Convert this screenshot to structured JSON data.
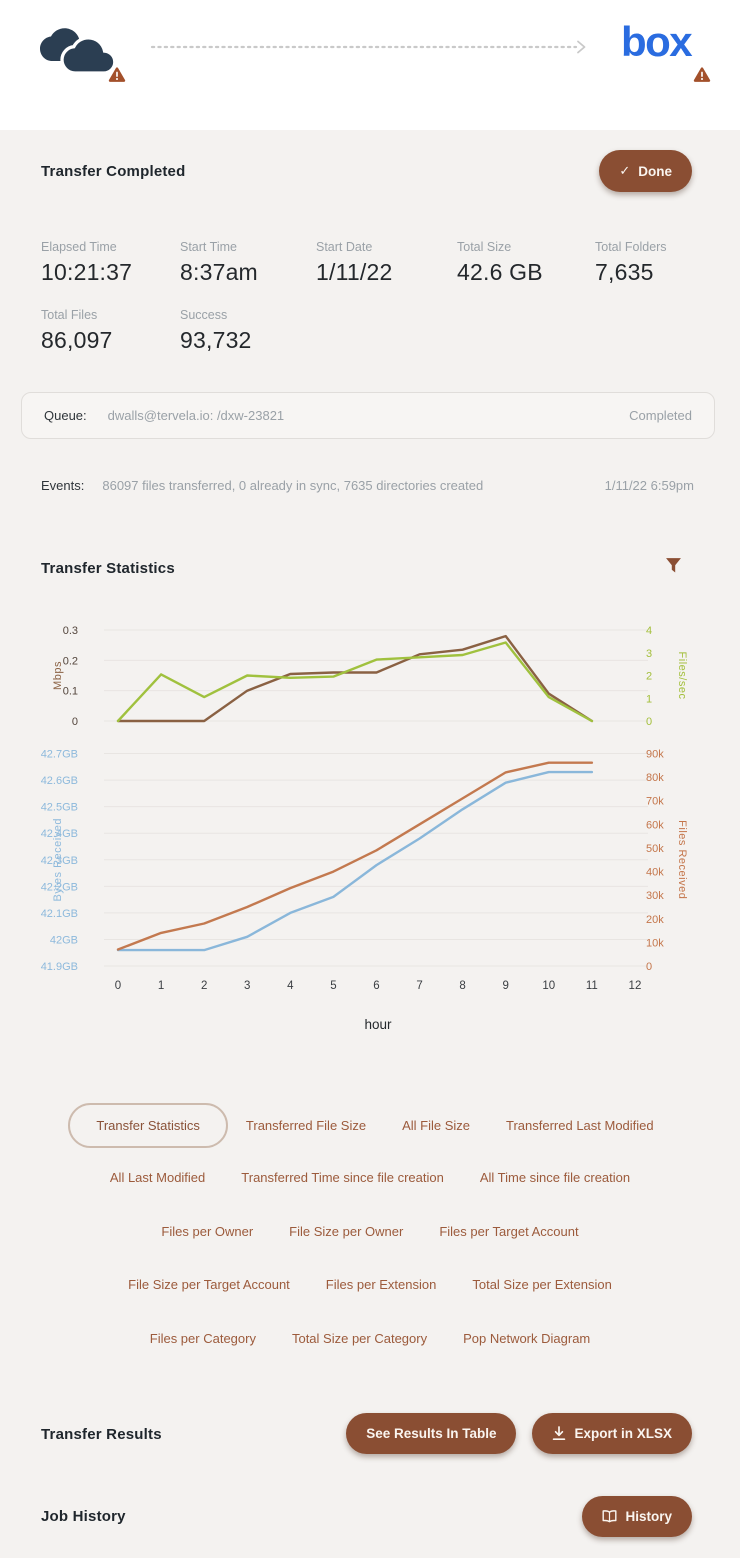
{
  "header": {
    "source_icon": "onedrive-cloud",
    "target_logo": "box",
    "warning_color": "#a3502b"
  },
  "transfer": {
    "title": "Transfer Completed",
    "done_label": "Done",
    "stats": [
      {
        "label": "Elapsed Time",
        "value": "10:21:37"
      },
      {
        "label": "Start Time",
        "value": "8:37am"
      },
      {
        "label": "Start Date",
        "value": "1/11/22"
      },
      {
        "label": "Total Size",
        "value": "42.6 GB"
      },
      {
        "label": "Total Folders",
        "value": "7,635"
      },
      {
        "label": "Total Files",
        "value": "86,097"
      },
      {
        "label": "Success",
        "value": "93,732"
      }
    ]
  },
  "queue": {
    "label": "Queue:",
    "value": "dwalls@tervela.io: /dxw-23821",
    "status": "Completed"
  },
  "events": {
    "label": "Events:",
    "value": "86097 files transferred, 0 already in sync, 7635 directories created",
    "timestamp": "1/11/22 6:59pm"
  },
  "statistics": {
    "title": "Transfer Statistics",
    "filter_icon": "funnel"
  },
  "chart_data": [
    {
      "type": "line",
      "x": [
        0,
        1,
        2,
        3,
        4,
        5,
        6,
        7,
        8,
        9,
        10,
        11
      ],
      "xlabel": "hour",
      "x_ticks": [
        0,
        1,
        2,
        3,
        4,
        5,
        6,
        7,
        8,
        9,
        10,
        11,
        12
      ],
      "xlim": [
        0,
        12
      ],
      "grid": true,
      "left_axis": {
        "label": "Mbps",
        "color": "#53453c",
        "title_color": "#8a6143",
        "ticks": [
          "0",
          "0.1",
          "0.2",
          "0.3"
        ],
        "tick_values": [
          0,
          0.1,
          0.2,
          0.3
        ],
        "range": [
          0,
          0.3
        ]
      },
      "right_axis": {
        "label": "Files/sec",
        "color": "#a3bf3b",
        "title_color": "#a3bf3b",
        "ticks": [
          "0",
          "1",
          "2",
          "3",
          "4"
        ],
        "tick_values": [
          0,
          1,
          2,
          3,
          4
        ],
        "range": [
          0,
          4
        ]
      },
      "series": [
        {
          "name": "Mbps",
          "axis": "left",
          "color": "#8a6143",
          "values": [
            0,
            0,
            0,
            0.1,
            0.155,
            0.16,
            0.16,
            0.22,
            0.235,
            0.28,
            0.09,
            0
          ]
        },
        {
          "name": "Files/sec",
          "axis": "right",
          "color": "#a0c13e",
          "values": [
            0,
            2.05,
            1.05,
            2.0,
            1.9,
            1.95,
            2.7,
            2.8,
            2.9,
            3.45,
            1.05,
            0
          ]
        }
      ]
    },
    {
      "type": "line",
      "x": [
        0,
        1,
        2,
        3,
        4,
        5,
        6,
        7,
        8,
        9,
        10,
        11
      ],
      "xlabel": "hour",
      "x_ticks": [
        0,
        1,
        2,
        3,
        4,
        5,
        6,
        7,
        8,
        9,
        10,
        11,
        12
      ],
      "xlim": [
        0,
        12
      ],
      "grid": true,
      "left_axis": {
        "label": "Bytes Received",
        "color": "#8db9dc",
        "title_color": "#8db9dc",
        "ticks": [
          "41.9GB",
          "42GB",
          "42.1GB",
          "42.2GB",
          "42.3GB",
          "42.4GB",
          "42.5GB",
          "42.6GB",
          "42.7GB"
        ],
        "tick_values": [
          41.9,
          42.0,
          42.1,
          42.2,
          42.3,
          42.4,
          42.5,
          42.6,
          42.7
        ],
        "range": [
          41.9,
          42.7
        ]
      },
      "right_axis": {
        "label": "Files Received",
        "color": "#c4764b",
        "title_color": "#c4764b",
        "ticks": [
          "0",
          "10k",
          "20k",
          "30k",
          "40k",
          "50k",
          "60k",
          "70k",
          "80k",
          "90k"
        ],
        "tick_values": [
          0,
          10000,
          20000,
          30000,
          40000,
          50000,
          60000,
          70000,
          80000,
          90000
        ],
        "range": [
          0,
          90000
        ]
      },
      "series": [
        {
          "name": "Bytes Received",
          "axis": "left",
          "color": "#8ab7da",
          "values": [
            41.96,
            41.96,
            41.96,
            42.01,
            42.1,
            42.16,
            42.28,
            42.38,
            42.49,
            42.59,
            42.63,
            42.63
          ]
        },
        {
          "name": "Files Received",
          "axis": "right",
          "color": "#c3794f",
          "values": [
            7000,
            14000,
            18000,
            25000,
            33000,
            40000,
            49000,
            60000,
            71000,
            82000,
            86097,
            86097
          ]
        }
      ]
    }
  ],
  "views": {
    "selected": "Transfer Statistics",
    "rows": [
      [
        "Transfer Statistics",
        "Transferred File Size",
        "All File Size",
        "Transferred Last Modified"
      ],
      [
        "All Last Modified",
        "Transferred Time since file creation",
        "All Time since file creation"
      ],
      [
        "Files per Owner",
        "File Size per Owner",
        "Files per Target Account"
      ],
      [
        "File Size per Target Account",
        "Files per Extension",
        "Total Size per Extension"
      ],
      [
        "Files per Category",
        "Total Size per Category",
        "Pop Network Diagram"
      ]
    ]
  },
  "results": {
    "title": "Transfer Results",
    "table_button": "See Results In Table",
    "export_button": "Export in XLSX"
  },
  "history": {
    "title": "Job History",
    "button": "History"
  }
}
